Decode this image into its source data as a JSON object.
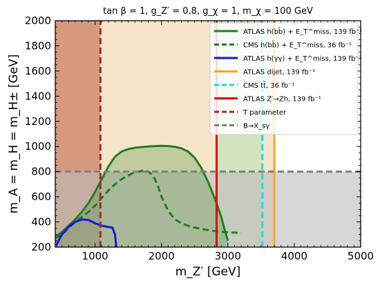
{
  "chart_data": {
    "type": "line",
    "title": "tan β = 1, g_Z′ = 0.8, g_χ = 1, m_χ = 100 GeV",
    "xlabel": "m_Z′ [GeV]",
    "ylabel": "m_A = m_H = m_H± [GeV]",
    "xlim": [
      400,
      5000
    ],
    "ylim": [
      200,
      2000
    ],
    "xticks": [
      1000,
      2000,
      3000,
      4000,
      5000
    ],
    "yticks": [
      200,
      400,
      600,
      800,
      1000,
      1200,
      1400,
      1600,
      1800,
      2000
    ],
    "grid": false,
    "legend_position": "top-right",
    "regions": [
      {
        "name": "T parameter",
        "x": [
          400,
          1080
        ],
        "y": [
          200,
          2000
        ],
        "color": "#a52a2a",
        "opacity": 0.5
      },
      {
        "name": "ATLAS dijet",
        "x": [
          400,
          3700
        ],
        "y": [
          200,
          2000
        ],
        "color": "#e6a84d",
        "opacity": 0.3
      },
      {
        "name": "CMS tt",
        "x": [
          2830,
          3520
        ],
        "y": [
          200,
          2000
        ],
        "color": "#7fe0a8",
        "opacity": 0.3
      },
      {
        "name": "B→Xsγ",
        "x": [
          400,
          5000
        ],
        "y": [
          200,
          800
        ],
        "color": "#bdbdbd",
        "opacity": 0.6
      }
    ],
    "series": [
      {
        "name": "ATLAS h(bb̄) + E_T^miss, 139 fb⁻¹",
        "color": "#1e7f1e",
        "dash": "solid",
        "fill": "#1e7f1e",
        "x": [
          400,
          500,
          600,
          700,
          800,
          900,
          1000,
          1100,
          1200,
          1300,
          1400,
          1500,
          1600,
          1700,
          1800,
          1900,
          2000,
          2100,
          2200,
          2300,
          2400,
          2500,
          2600,
          2700,
          2800,
          2900,
          2950,
          3000
        ],
        "y": [
          280,
          320,
          370,
          420,
          480,
          550,
          640,
          740,
          840,
          920,
          960,
          980,
          990,
          995,
          1000,
          1003,
          1005,
          1003,
          998,
          985,
          960,
          910,
          830,
          720,
          590,
          440,
          340,
          250
        ]
      },
      {
        "name": "CMS h(bb̄) + E_T^miss, 36 fb⁻¹",
        "color": "#1e7f1e",
        "dash": "dashed",
        "fill": null,
        "x": [
          400,
          500,
          600,
          700,
          800,
          900,
          1000,
          1100,
          1200,
          1300,
          1400,
          1500,
          1600,
          1700,
          1750,
          1800,
          1850,
          1900,
          1950,
          2000,
          2100,
          2200,
          2300,
          2400,
          2500,
          2600,
          2700,
          2800,
          2900,
          3000,
          3100,
          3200
        ],
        "y": [
          270,
          300,
          350,
          400,
          440,
          480,
          530,
          590,
          650,
          700,
          740,
          770,
          795,
          805,
          810,
          800,
          780,
          740,
          680,
          600,
          490,
          420,
          390,
          370,
          355,
          345,
          335,
          328,
          322,
          318,
          316,
          310
        ]
      },
      {
        "name": "ATLAS h(γγ) + E_T^miss, 139 fb⁻¹",
        "color": "#1414e6",
        "dash": "solid",
        "fill": null,
        "x": [
          400,
          500,
          600,
          700,
          800,
          900,
          1000,
          1100,
          1200,
          1260,
          1300,
          1320
        ],
        "y": [
          200,
          300,
          360,
          400,
          420,
          415,
          390,
          370,
          360,
          355,
          300,
          200
        ]
      },
      {
        "name": "ATLAS dijet, 139 fb⁻¹",
        "color": "#f5a623",
        "dash": "solid",
        "fill": null,
        "x": [
          3700,
          3700
        ],
        "y": [
          200,
          2000
        ]
      },
      {
        "name": "CMS tt̄, 36 fb⁻¹",
        "color": "#00e5ee",
        "dash": "dashed",
        "fill": null,
        "x": [
          3520,
          3520
        ],
        "y": [
          200,
          2000
        ]
      },
      {
        "name": "ATLAS Z′→Zh, 139 fb⁻¹",
        "color": "#e60000",
        "dash": "solid",
        "fill": null,
        "x": [
          2830,
          2830
        ],
        "y": [
          200,
          2000
        ]
      },
      {
        "name": "T parameter",
        "color": "#a52a2a",
        "dash": "dashed",
        "fill": null,
        "x": [
          1080,
          1080
        ],
        "y": [
          200,
          2000
        ]
      },
      {
        "name": "B→X_sγ",
        "color": "#808080",
        "dash": "dashed",
        "fill": null,
        "x": [
          400,
          5000
        ],
        "y": [
          800,
          800
        ]
      }
    ]
  }
}
